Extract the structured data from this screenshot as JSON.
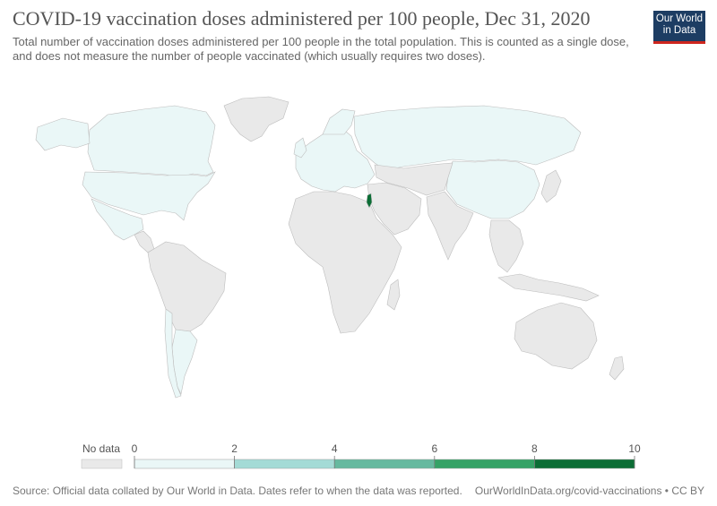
{
  "title": "COVID-19 vaccination doses administered per 100 people, Dec 31, 2020",
  "subtitle": "Total number of vaccination doses administered per 100 people in the total population. This is counted as a single dose, and does not measure the number of people vaccinated (which usually requires two doses).",
  "logo": {
    "line1": "Our World",
    "line2": "in Data"
  },
  "colors": {
    "no_data": "#e9e9e9",
    "land_border": "#bdbdbd",
    "bin_0_2": "#eaf7f7",
    "bin_2_4": "#a4dbd6",
    "bin_4_6": "#66b99f",
    "bin_6_8": "#35a266",
    "bin_8_10": "#0b6d35"
  },
  "legend": {
    "no_data_label": "No data",
    "ticks": [
      "0",
      "2",
      "4",
      "6",
      "8",
      "10"
    ]
  },
  "regions": [
    {
      "name": "North America",
      "bin": "bin_0_2"
    },
    {
      "name": "Mexico",
      "bin": "bin_0_2"
    },
    {
      "name": "Greenland",
      "bin": "no_data"
    },
    {
      "name": "South America",
      "bin": "no_data"
    },
    {
      "name": "Argentina",
      "bin": "bin_0_2"
    },
    {
      "name": "Chile",
      "bin": "bin_0_2"
    },
    {
      "name": "Europe",
      "bin": "bin_0_2"
    },
    {
      "name": "Russia",
      "bin": "bin_0_2"
    },
    {
      "name": "China",
      "bin": "bin_0_2"
    },
    {
      "name": "Israel",
      "bin": "bin_8_10"
    },
    {
      "name": "Africa",
      "bin": "no_data"
    },
    {
      "name": "Middle East",
      "bin": "no_data"
    },
    {
      "name": "South Asia",
      "bin": "no_data"
    },
    {
      "name": "Southeast Asia",
      "bin": "no_data"
    },
    {
      "name": "Australia",
      "bin": "no_data"
    },
    {
      "name": "Japan",
      "bin": "no_data"
    }
  ],
  "footer": {
    "source": "Source: Official data collated by Our World in Data. Dates refer to when the data was reported.",
    "url": "OurWorldInData.org/covid-vaccinations • CC BY"
  }
}
